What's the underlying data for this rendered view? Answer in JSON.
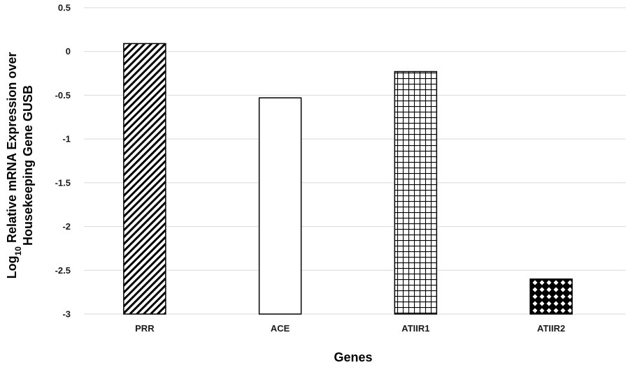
{
  "chart_data": {
    "type": "bar",
    "title": "",
    "xlabel": "Genes",
    "ylabel_line1_prefix": "Log",
    "ylabel_line1_subscript": "10",
    "ylabel_line1_rest": " Relative mRNA Expression over",
    "ylabel_line2": "Housekeeping Gene GUSB",
    "categories": [
      "PRR",
      "ACE",
      "ATIIR1",
      "ATIIR2"
    ],
    "values": [
      0.09,
      -0.53,
      -0.23,
      -2.6
    ],
    "patterns": [
      "diagonal-stripes",
      "solid-white",
      "grid",
      "diamond-checker"
    ],
    "ylim": [
      -3,
      0.5
    ],
    "yticks": [
      0.5,
      0,
      -0.5,
      -1,
      -1.5,
      -2,
      -2.5,
      -3
    ],
    "ytick_labels": [
      "0.5",
      "0",
      "-0.5",
      "-1",
      "-1.5",
      "-2",
      "-2.5",
      "-3"
    ],
    "grid": true,
    "legend": "none",
    "colors": {
      "grid": "#d9d9d9",
      "bar_stroke": "#000000",
      "bar_fill": "#ffffff"
    }
  }
}
